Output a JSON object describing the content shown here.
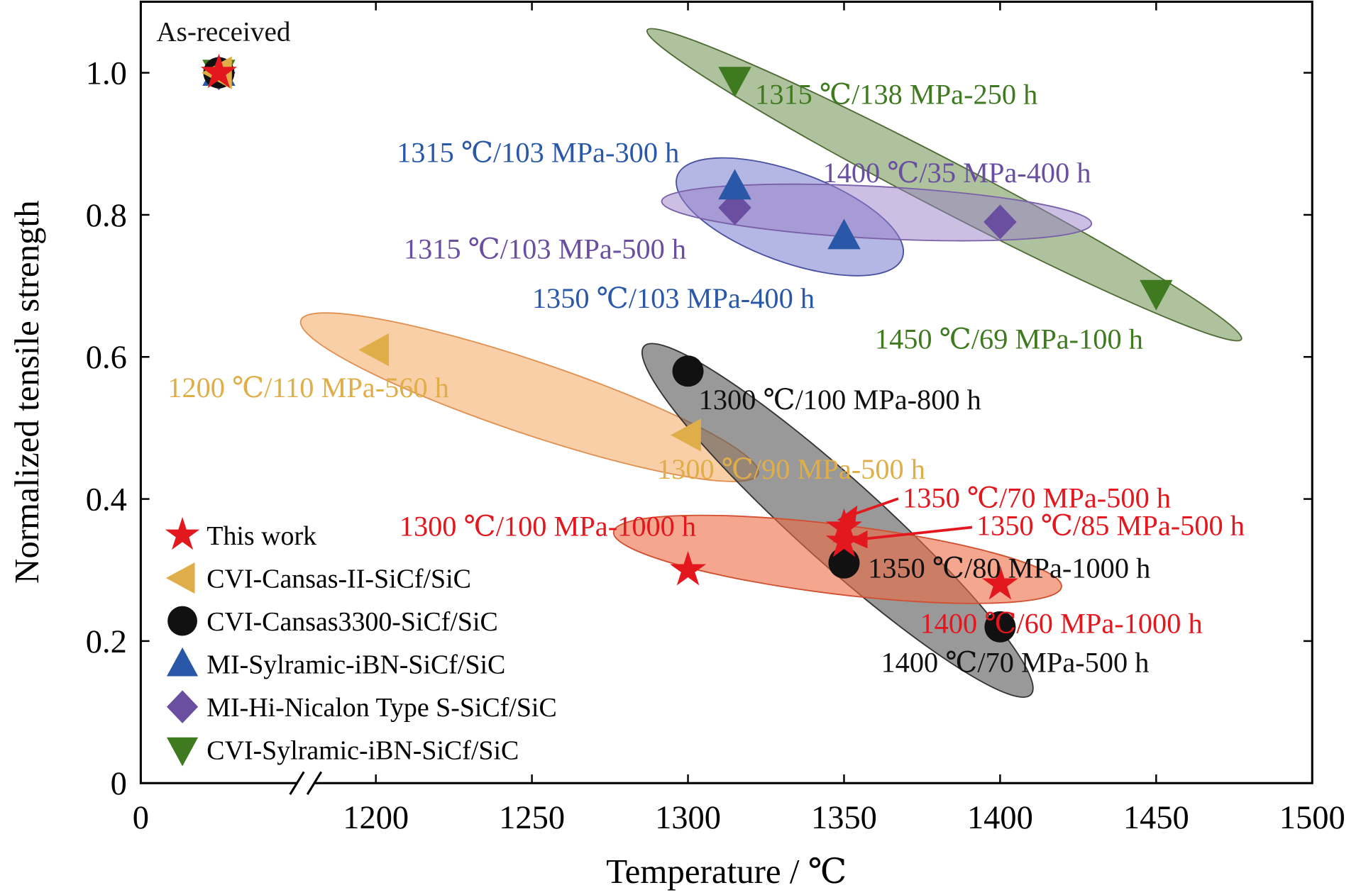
{
  "chart_data": {
    "type": "scatter",
    "xlabel": "Temperature / ℃",
    "ylabel": "Normalized tensile strength",
    "xlim": [
      0,
      1500
    ],
    "xbreak": [
      100,
      1180
    ],
    "ylim": [
      0,
      1.1
    ],
    "xticks": [
      0,
      1200,
      1250,
      1300,
      1350,
      1400,
      1450,
      1500
    ],
    "yticks": [
      0,
      0.2,
      0.4,
      0.6,
      0.8,
      {
        "value": 1,
        "label": "1.0"
      }
    ],
    "legend": "lower left",
    "series": [
      {
        "name": "This work",
        "color": "#e3171e",
        "marker": "star",
        "x": [
          50,
          1300,
          1350,
          1350,
          1400
        ],
        "values": [
          1.0,
          0.3,
          0.36,
          0.34,
          0.28
        ]
      },
      {
        "name": "CVI-Cansas-II-SiCf/SiC",
        "color": "#e0ae48",
        "marker": "triangle-left",
        "x": [
          50,
          1200,
          1300
        ],
        "values": [
          1.0,
          0.61,
          0.49
        ]
      },
      {
        "name": "CVI-Cansas3300-SiCf/SiC",
        "color": "#111111",
        "marker": "circle",
        "x": [
          50,
          1300,
          1350,
          1400
        ],
        "values": [
          1.0,
          0.58,
          0.31,
          0.22
        ]
      },
      {
        "name": "MI-Sylramic-iBN-SiCf/SiC",
        "color": "#2a58a8",
        "marker": "triangle-up",
        "x": [
          50,
          1315,
          1350
        ],
        "values": [
          1.0,
          0.84,
          0.77
        ]
      },
      {
        "name": "MI-Hi-Nicalon Type S-SiCf/SiC",
        "color": "#6a4ea0",
        "marker": "diamond",
        "x": [
          50,
          1315,
          1400
        ],
        "values": [
          1.0,
          0.81,
          0.79
        ]
      },
      {
        "name": "CVI-Sylramic-iBN-SiCf/SiC",
        "color": "#3f7a20",
        "marker": "triangle-down",
        "x": [
          50,
          1315,
          1450
        ],
        "values": [
          1.0,
          0.99,
          0.69
        ]
      }
    ],
    "annotations": [
      {
        "text": "As-received",
        "color": "#111111"
      },
      {
        "text": "1315 ℃/138 MPa-250 h",
        "color": "#3f7a20"
      },
      {
        "text": "1315 ℃/103 MPa-300 h",
        "color": "#2a58a8"
      },
      {
        "text": "1400 ℃/35 MPa-400 h",
        "color": "#6a4ea0"
      },
      {
        "text": "1315 ℃/103 MPa-500 h",
        "color": "#6a4ea0"
      },
      {
        "text": "1350 ℃/103 MPa-400 h",
        "color": "#2a58a8"
      },
      {
        "text": "1450 ℃/69 MPa-100 h",
        "color": "#3f7a20"
      },
      {
        "text": "1200 ℃/110 MPa-560 h",
        "color": "#e0ae48"
      },
      {
        "text": "1300 ℃/100 MPa-800 h",
        "color": "#111111"
      },
      {
        "text": "1300 ℃/90 MPa-500 h",
        "color": "#e0ae48"
      },
      {
        "text": "1350 ℃/70 MPa-500 h",
        "color": "#e3171e"
      },
      {
        "text": "1300 ℃/100 MPa-1000 h",
        "color": "#e3171e"
      },
      {
        "text": "1350 ℃/85 MPa-500 h",
        "color": "#e3171e"
      },
      {
        "text": "1350 ℃/80 MPa-1000 h",
        "color": "#111111"
      },
      {
        "text": "1400 ℃/60 MPa-1000 h",
        "color": "#e3171e"
      },
      {
        "text": "1400 ℃/70 MPa-500 h",
        "color": "#111111"
      }
    ]
  }
}
